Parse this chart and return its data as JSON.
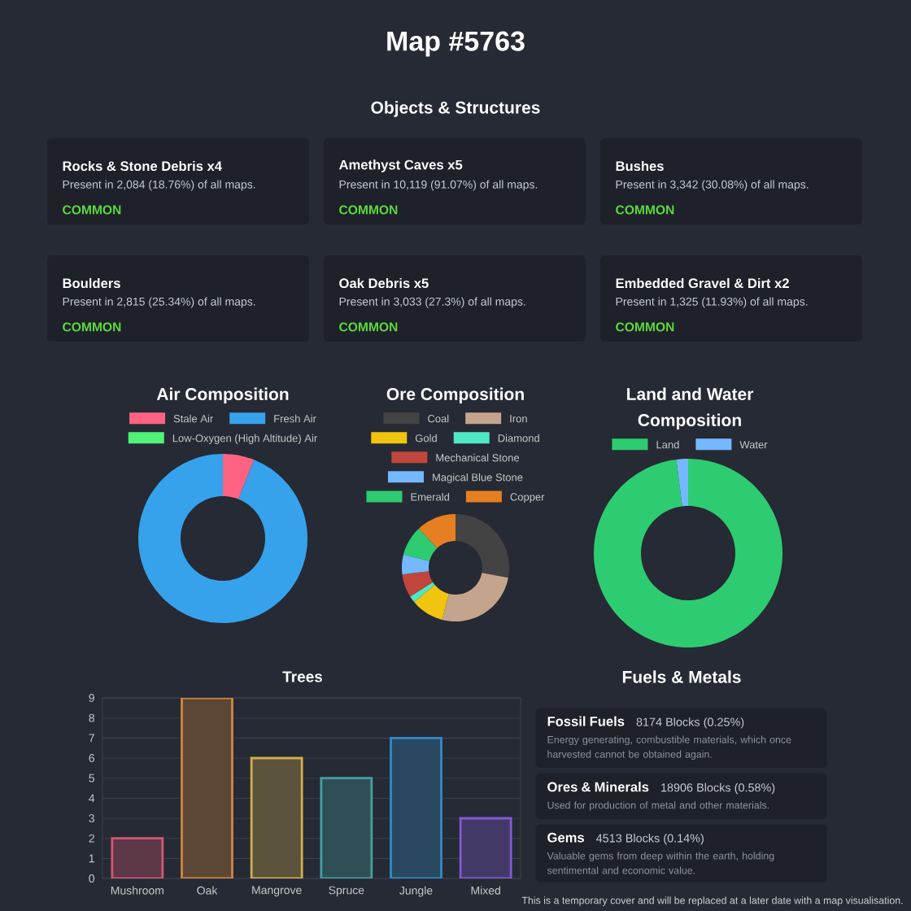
{
  "chart_data": [
    {
      "type": "other",
      "title": "Map #5763",
      "subtitle": "Objects & Structures",
      "annotations": [
        "Rocks & Stone Debris x4",
        "Present in 2,084 (18.76%) of all maps.",
        "COMMON",
        "Amethyst Caves x5",
        "Present in 10,119 (91.07%) of all maps.",
        "COMMON",
        "Bushes",
        "Present in 3,342 (30.08%) of all maps.",
        "COMMON",
        "Boulders",
        "Present in 2,815 (25.34%) of all maps.",
        "COMMON",
        "Oak Debris x5",
        "Present in 3,033 (27.3%) of all maps.",
        "COMMON",
        "Embedded Gravel & Dirt x2",
        "Present in 1,325 (11.93%) of all maps.",
        "COMMON"
      ]
    },
    {
      "type": "donut",
      "title": "Air Composition",
      "categories": [
        "Stale Air",
        "Fresh Air",
        "Low-Oxygen (High Altitude) Air"
      ],
      "values": [
        6,
        94,
        0
      ],
      "colors": [
        "#ff6384",
        "#36a2eb",
        "#50f27a"
      ],
      "legend": "top"
    },
    {
      "type": "donut",
      "title": "Ore Composition",
      "categories": [
        "Coal",
        "Iron",
        "Gold",
        "Diamond",
        "Mechanical Stone",
        "Magical Blue Stone",
        "Emerald",
        "Copper"
      ],
      "values": [
        28,
        26,
        10,
        2,
        7,
        6,
        9,
        12
      ],
      "colors": [
        "#434343",
        "#c4a48c",
        "#f1c40f",
        "#4fe8c4",
        "#c0463b",
        "#74b9ff",
        "#2ecc71",
        "#e67e22"
      ],
      "legend": "top"
    },
    {
      "type": "donut",
      "title": "Land and Water Composition",
      "categories": [
        "Land",
        "Water"
      ],
      "values": [
        98,
        2
      ],
      "colors": [
        "#2ecc71",
        "#74b9ff"
      ],
      "legend": "top"
    },
    {
      "type": "bar",
      "title": "Trees",
      "categories": [
        "Mushroom",
        "Oak",
        "Mangrove",
        "Spruce",
        "Jungle",
        "Mixed"
      ],
      "values": [
        2,
        9,
        6,
        5,
        7,
        3
      ],
      "colors": [
        "#5c3848",
        "#5c4737",
        "#5c533c",
        "#2f4f57",
        "#2a4862",
        "#433967"
      ],
      "ylim": [
        0,
        9
      ],
      "yticks": [
        0,
        1,
        2,
        3,
        4,
        5,
        6,
        7,
        8,
        9
      ],
      "grid": "y"
    },
    {
      "type": "other",
      "title": "Fuels & Metals",
      "annotations": [
        "Fossil Fuels",
        "8174 Blocks (0.25%)",
        "Energy generating, combustible materials, which once harvested cannot be obtained again.",
        "Ores & Minerals",
        "18906 Blocks (0.58%)",
        "Used for production of metal and other materials.",
        "Gems",
        "4513 Blocks (0.14%)",
        "Valuable gems from deep within the earth, holding sentimental and economic value.",
        "This is a temporary cover and will be replaced at a later date with a map visualisation."
      ]
    }
  ]
}
